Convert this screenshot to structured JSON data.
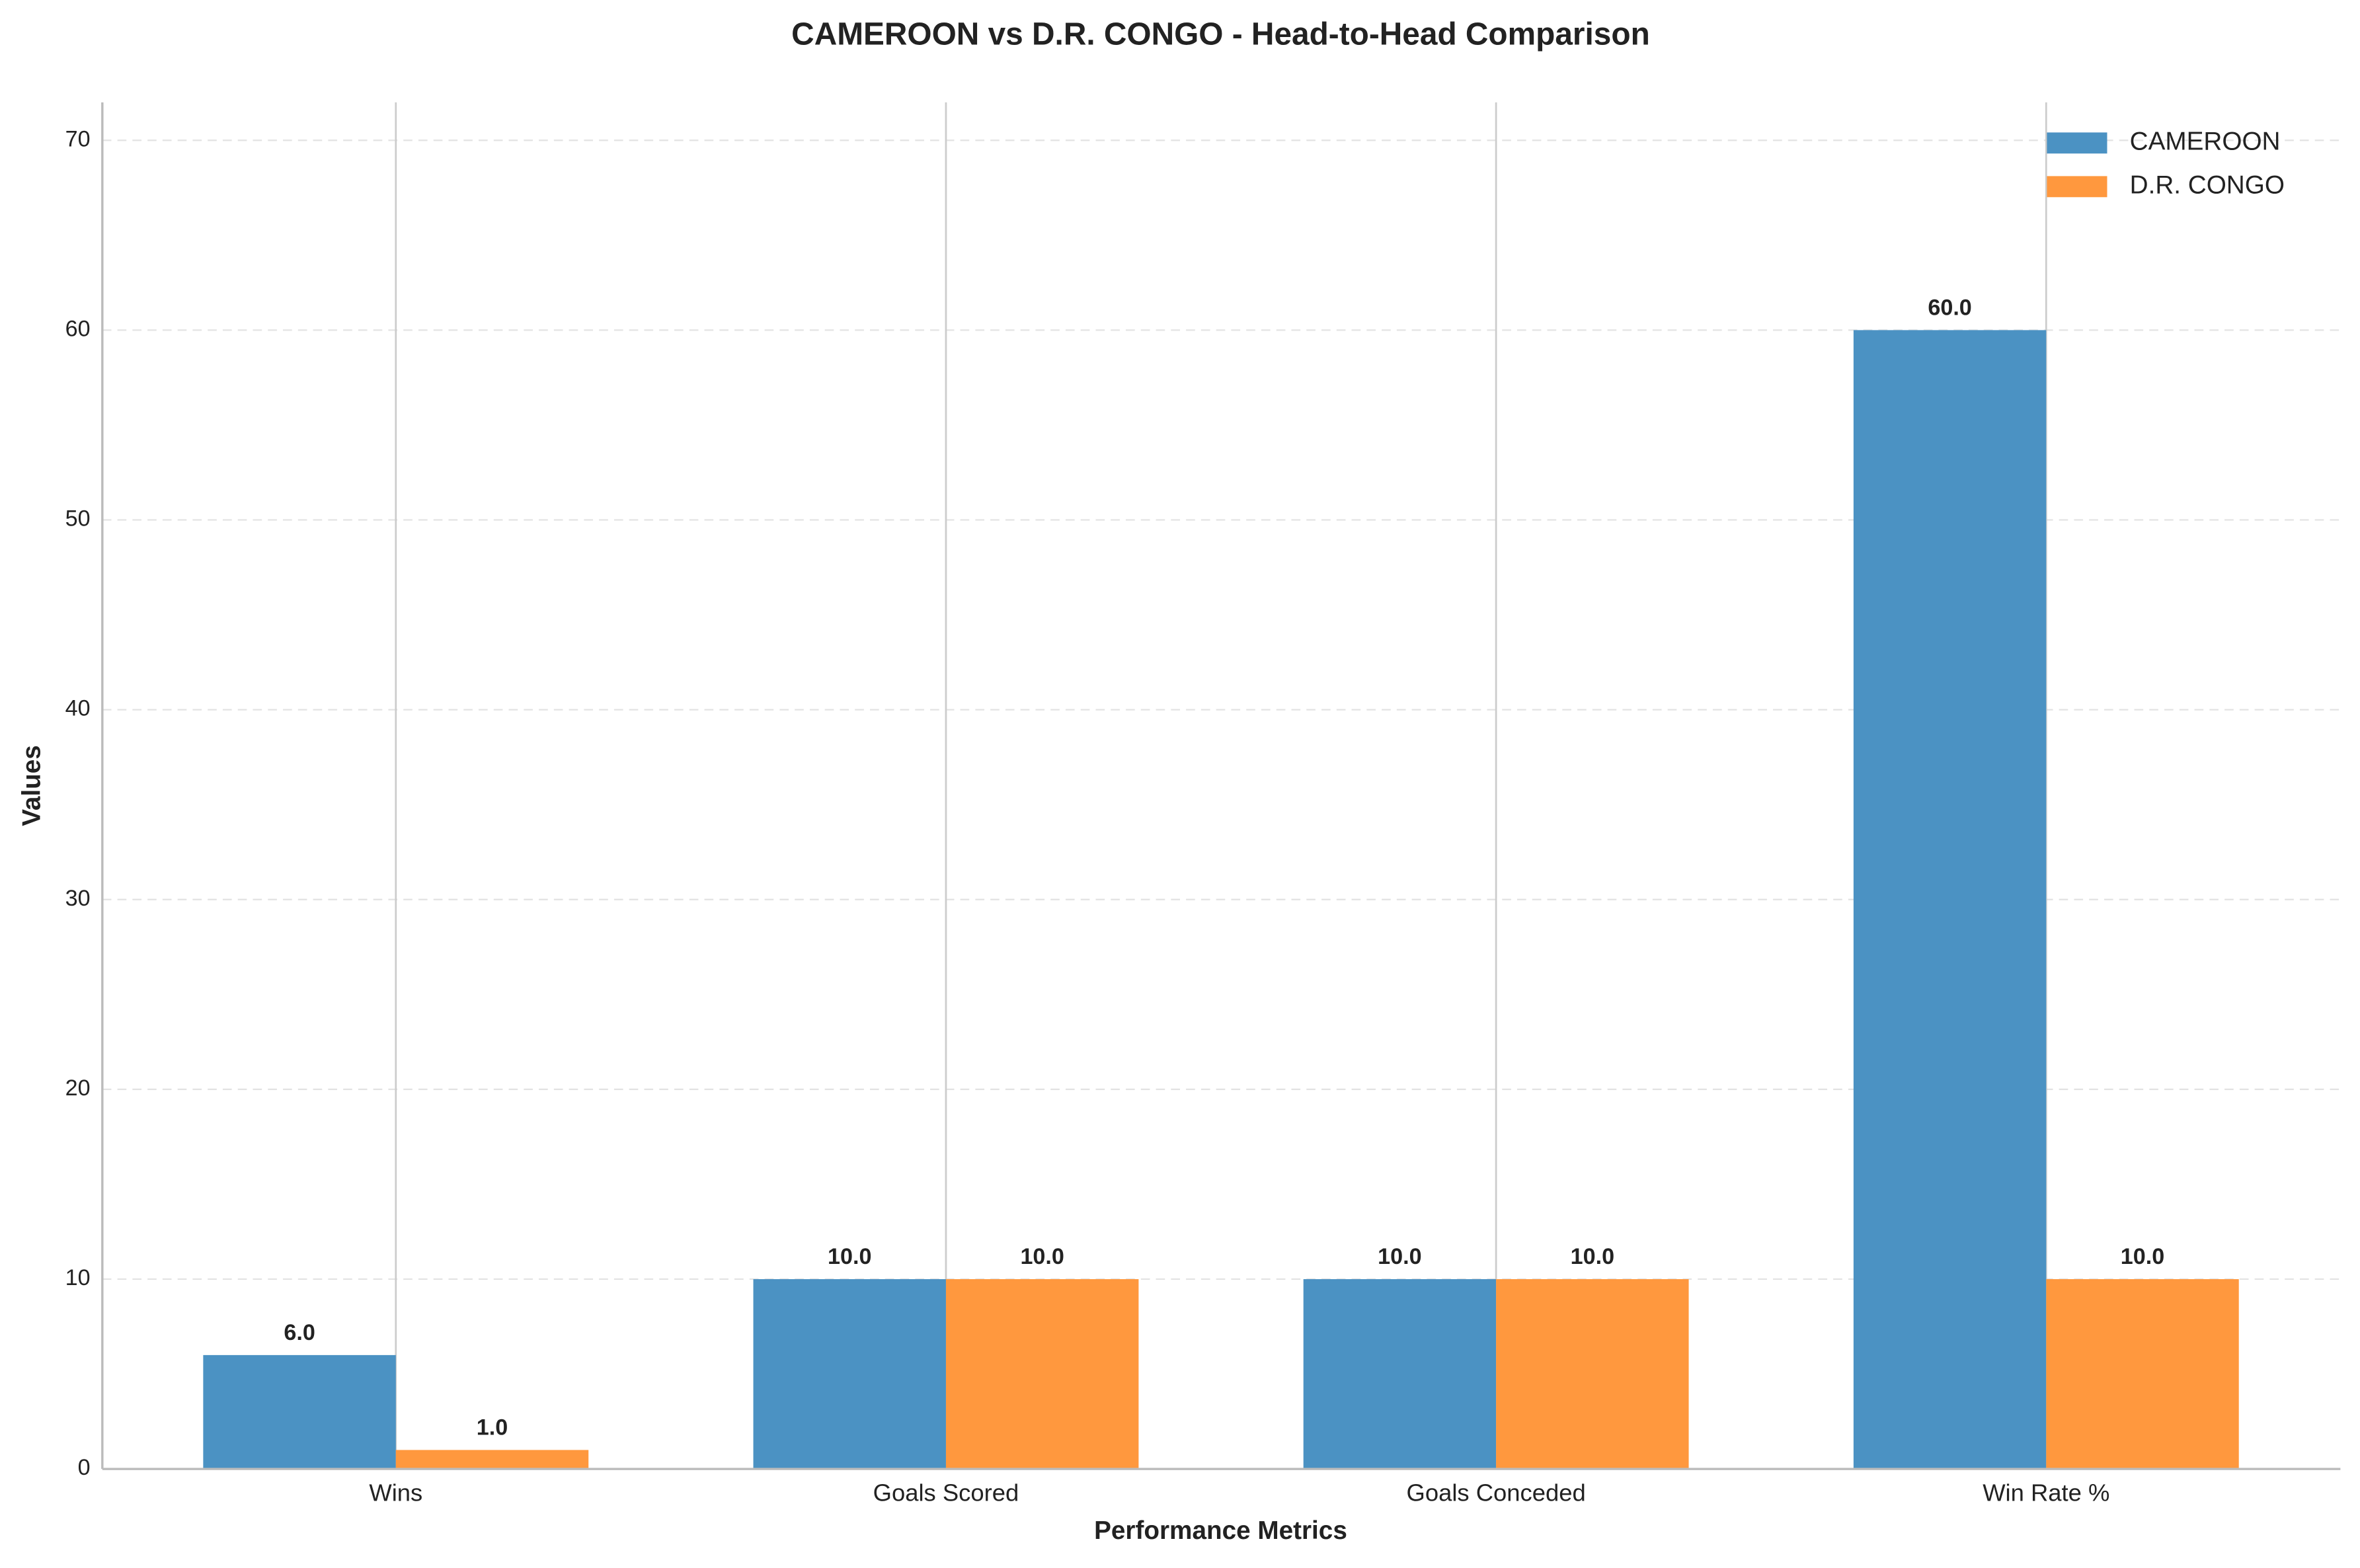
{
  "chart_data": {
    "type": "bar",
    "title": "CAMEROON vs D.R. CONGO - Head-to-Head Comparison",
    "x_label": "Performance Metrics",
    "y_label": "Values",
    "categories": [
      "Wins",
      "Goals Scored",
      "Goals Conceded",
      "Win Rate %"
    ],
    "series": [
      {
        "name": "CAMEROON",
        "color": "#4b92c3",
        "values": [
          6,
          10,
          10,
          60
        ],
        "value_labels": [
          "6.0",
          "10.0",
          "10.0",
          "60.0"
        ]
      },
      {
        "name": "D.R. CONGO",
        "color": "#ff983e",
        "values": [
          1,
          10,
          10,
          10
        ],
        "value_labels": [
          "1.0",
          "10.0",
          "10.0",
          "10.0"
        ]
      }
    ],
    "ylim": [
      0,
      72
    ],
    "yticks": [
      0,
      10,
      20,
      30,
      40,
      50,
      60,
      70
    ],
    "grid": true,
    "legend": "upper right"
  }
}
